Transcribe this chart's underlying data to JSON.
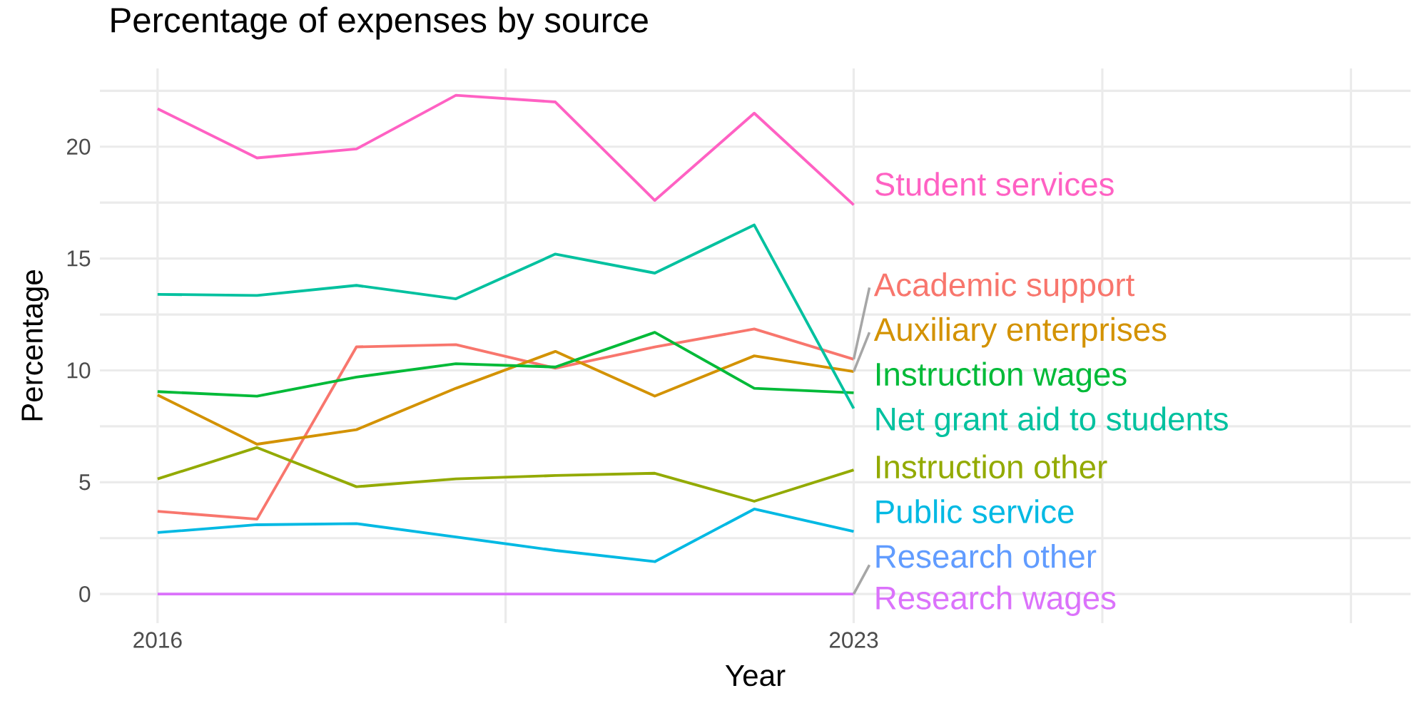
{
  "chart_data": {
    "type": "line",
    "title": "Percentage of expenses by source",
    "xlabel": "Year",
    "ylabel": "Percentage",
    "x": [
      2016,
      2017,
      2018,
      2019,
      2020,
      2021,
      2022,
      2023
    ],
    "xlim": [
      2015.42,
      2028.6
    ],
    "ylim": [
      -1.3,
      23.5
    ],
    "xticks": [
      2016,
      {
        "value": 2019.5,
        "label": null
      },
      2023,
      {
        "value": 2025.5,
        "label": null
      },
      {
        "value": 2028,
        "label": null
      }
    ],
    "yticks": [
      0,
      {
        "value": 2.5,
        "label": null
      },
      5,
      {
        "value": 7.5,
        "label": null
      },
      10,
      {
        "value": 12.5,
        "label": null
      },
      15,
      {
        "value": 17.5,
        "label": null
      },
      20,
      {
        "value": 22.5,
        "label": null
      }
    ],
    "grid": true,
    "marker": "none",
    "line_style": "solid",
    "series": [
      {
        "name": "Academic support",
        "color": "#f8766d",
        "values": [
          3.7,
          3.35,
          11.05,
          11.15,
          10.1,
          11.05,
          11.85,
          10.5
        ]
      },
      {
        "name": "Auxiliary enterprises",
        "color": "#d39200",
        "values": [
          8.9,
          6.7,
          7.35,
          9.2,
          10.85,
          8.85,
          10.65,
          9.95
        ]
      },
      {
        "name": "Instruction other",
        "color": "#93aa00",
        "values": [
          5.15,
          6.55,
          4.8,
          5.15,
          5.3,
          5.4,
          4.15,
          5.55
        ]
      },
      {
        "name": "Instruction wages",
        "color": "#00ba38",
        "values": [
          9.05,
          8.85,
          9.7,
          10.3,
          10.15,
          11.7,
          9.2,
          9.0
        ]
      },
      {
        "name": "Net grant aid to students",
        "color": "#00c19f",
        "values": [
          13.4,
          13.35,
          13.8,
          13.2,
          15.2,
          14.35,
          16.5,
          8.3
        ]
      },
      {
        "name": "Public service",
        "color": "#00b9e3",
        "values": [
          2.75,
          3.1,
          3.15,
          2.55,
          1.95,
          1.45,
          3.8,
          2.8
        ]
      },
      {
        "name": "Research other",
        "color": "#619cff",
        "values": [
          null,
          null,
          null,
          null,
          null,
          null,
          null,
          null
        ]
      },
      {
        "name": "Research wages",
        "color": "#db72fb",
        "values": [
          0,
          0,
          0,
          0,
          0,
          0,
          0,
          0
        ]
      },
      {
        "name": "Student services",
        "color": "#ff61c3",
        "values": [
          21.7,
          19.5,
          19.9,
          22.3,
          22.0,
          17.6,
          21.5,
          17.4
        ]
      }
    ]
  }
}
